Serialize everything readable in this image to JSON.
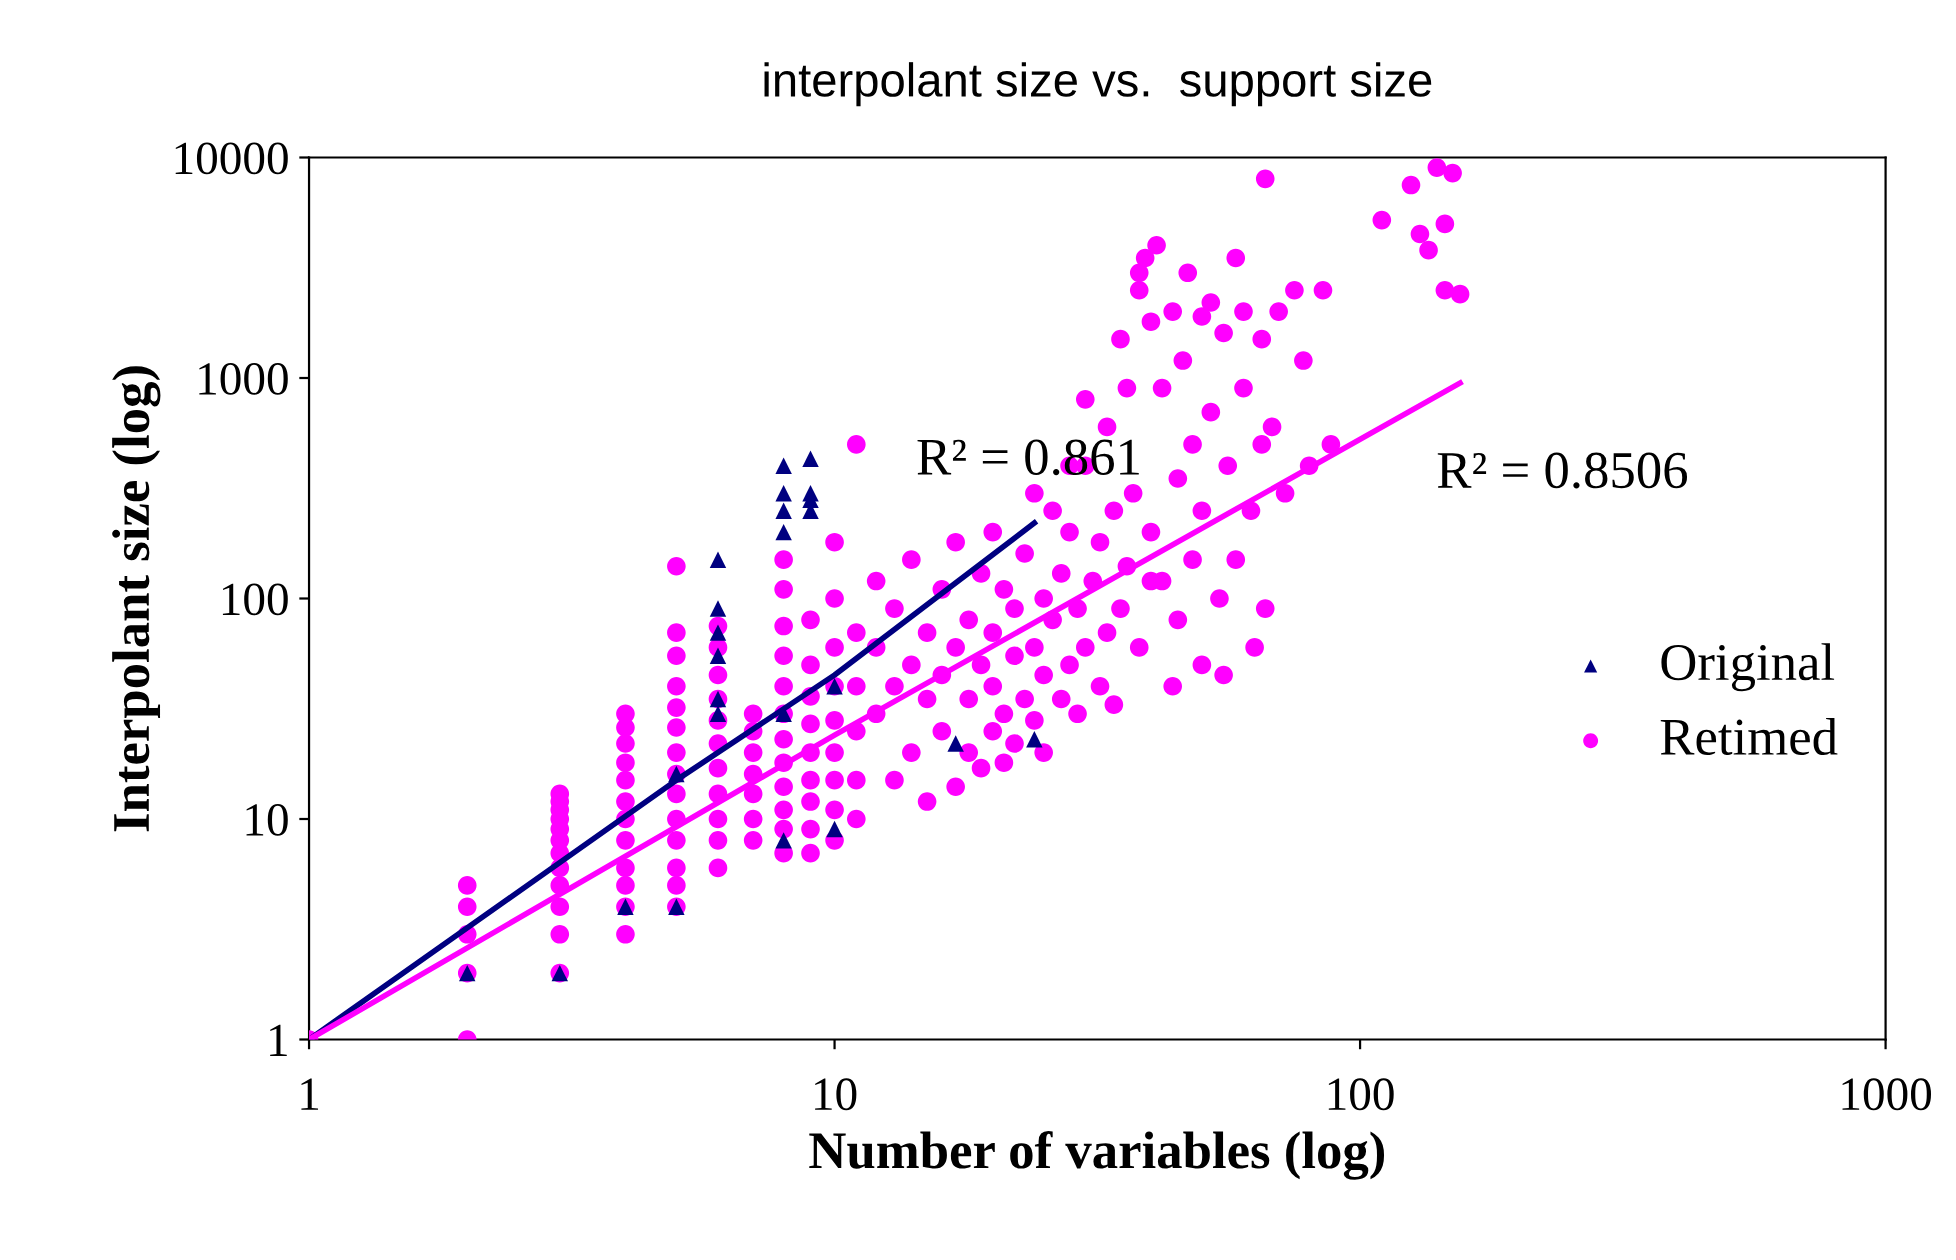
{
  "chart_data": {
    "type": "scatter",
    "title": "interpolant size vs.  support size",
    "xlabel": "Number of variables (log)",
    "ylabel": "Interpolant size (log)",
    "log": "xy",
    "xlim": [
      1,
      1000
    ],
    "ylim": [
      1,
      10000
    ],
    "xticks": [
      1,
      10,
      100,
      1000
    ],
    "yticks": [
      1,
      10,
      100,
      1000,
      10000
    ],
    "grid": false,
    "legend": "right",
    "series": [
      {
        "name": "Original",
        "color": "#000080",
        "marker": "triangle",
        "x": [
          2,
          3,
          4,
          5,
          5,
          6,
          6,
          6,
          6,
          6,
          6,
          8,
          8,
          8,
          8,
          8,
          8,
          9,
          9,
          9,
          9,
          10,
          10,
          17,
          24
        ],
        "values": [
          2,
          2,
          4,
          4,
          16,
          30,
          35,
          55,
          70,
          90,
          150,
          8,
          30,
          200,
          250,
          300,
          400,
          250,
          280,
          300,
          430,
          9,
          40,
          22,
          23
        ]
      },
      {
        "name": "Retimed",
        "color": "#ff00ff",
        "marker": "circle",
        "x": [
          1,
          2,
          2,
          2,
          2,
          2,
          3,
          3,
          3,
          3,
          3,
          3,
          3,
          3,
          3,
          3,
          3,
          3,
          4,
          4,
          4,
          4,
          4,
          4,
          4,
          4,
          4,
          4,
          4,
          4,
          5,
          5,
          5,
          5,
          5,
          5,
          5,
          5,
          5,
          5,
          5,
          5,
          5,
          5,
          6,
          6,
          6,
          6,
          6,
          6,
          6,
          6,
          6,
          6,
          6,
          7,
          7,
          7,
          7,
          7,
          7,
          7,
          8,
          8,
          8,
          8,
          8,
          8,
          8,
          8,
          8,
          8,
          8,
          8,
          9,
          9,
          9,
          9,
          9,
          9,
          9,
          9,
          9,
          10,
          10,
          10,
          10,
          10,
          10,
          10,
          10,
          10,
          11,
          11,
          11,
          11,
          11,
          11,
          12,
          12,
          12,
          13,
          13,
          13,
          14,
          14,
          14,
          15,
          15,
          15,
          16,
          16,
          16,
          17,
          17,
          17,
          18,
          18,
          18,
          19,
          19,
          19,
          20,
          20,
          20,
          20,
          21,
          21,
          21,
          22,
          22,
          22,
          23,
          23,
          24,
          24,
          24,
          25,
          25,
          25,
          26,
          26,
          27,
          27,
          28,
          28,
          29,
          29,
          30,
          30,
          31,
          32,
          32,
          33,
          33,
          34,
          34,
          35,
          35,
          36,
          37,
          38,
          38,
          39,
          40,
          40,
          41,
          42,
          42,
          44,
          45,
          45,
          46,
          47,
          48,
          48,
          50,
          50,
          52,
          52,
          54,
          55,
          56,
          58,
          58,
          60,
          60,
          62,
          63,
          65,
          66,
          66,
          68,
          70,
          72,
          75,
          78,
          80,
          85,
          88,
          110,
          125,
          130,
          135,
          140,
          145,
          150,
          145,
          155,
          38,
          36,
          30,
          28,
          65,
          50,
          44,
          40,
          55
        ],
        "values": [
          1,
          1,
          2,
          3,
          4,
          5,
          2,
          3,
          4,
          5,
          6,
          7,
          8,
          9,
          10,
          11,
          12,
          13,
          3,
          4,
          5,
          6,
          8,
          10,
          12,
          15,
          18,
          22,
          26,
          30,
          4,
          5,
          6,
          8,
          10,
          13,
          16,
          20,
          26,
          32,
          40,
          55,
          70,
          140,
          6,
          8,
          10,
          13,
          17,
          22,
          28,
          35,
          45,
          60,
          75,
          8,
          10,
          13,
          16,
          20,
          25,
          30,
          7,
          9,
          11,
          14,
          18,
          23,
          30,
          40,
          55,
          75,
          110,
          150,
          7,
          9,
          12,
          15,
          20,
          27,
          36,
          50,
          80,
          8,
          11,
          15,
          20,
          28,
          40,
          60,
          100,
          180,
          10,
          15,
          25,
          40,
          70,
          500,
          30,
          60,
          120,
          15,
          40,
          90,
          20,
          50,
          150,
          12,
          35,
          70,
          25,
          45,
          110,
          14,
          60,
          180,
          20,
          35,
          80,
          17,
          50,
          130,
          25,
          40,
          70,
          200,
          18,
          30,
          110,
          22,
          55,
          90,
          35,
          160,
          28,
          60,
          300,
          20,
          45,
          100,
          80,
          250,
          35,
          130,
          50,
          200,
          30,
          90,
          60,
          400,
          120,
          40,
          180,
          70,
          600,
          33,
          250,
          90,
          1500,
          140,
          300,
          2500,
          60,
          3500,
          200,
          1800,
          4000,
          120,
          900,
          2000,
          350,
          80,
          1200,
          3000,
          150,
          500,
          1900,
          250,
          700,
          2200,
          100,
          1600,
          400,
          3500,
          150,
          2000,
          900,
          250,
          60,
          1500,
          8000,
          90,
          600,
          2000,
          300,
          2500,
          1200,
          400,
          2500,
          500,
          5200,
          7500,
          4500,
          3800,
          9000,
          5000,
          8500,
          2500,
          2400,
          3000,
          900,
          800,
          400,
          500,
          50,
          40,
          120,
          45
        ]
      },
      {
        "type": "line",
        "color": "#000080",
        "x": [
          1,
          5,
          10,
          24
        ],
        "values": [
          1,
          15,
          45,
          220
        ]
      },
      {
        "type": "line",
        "color": "#ff00ff",
        "x": [
          1,
          10,
          155
        ],
        "values": [
          1,
          24,
          950
        ]
      }
    ],
    "annotations": [
      "R² = 0.861",
      "R² = 0.8506"
    ]
  }
}
